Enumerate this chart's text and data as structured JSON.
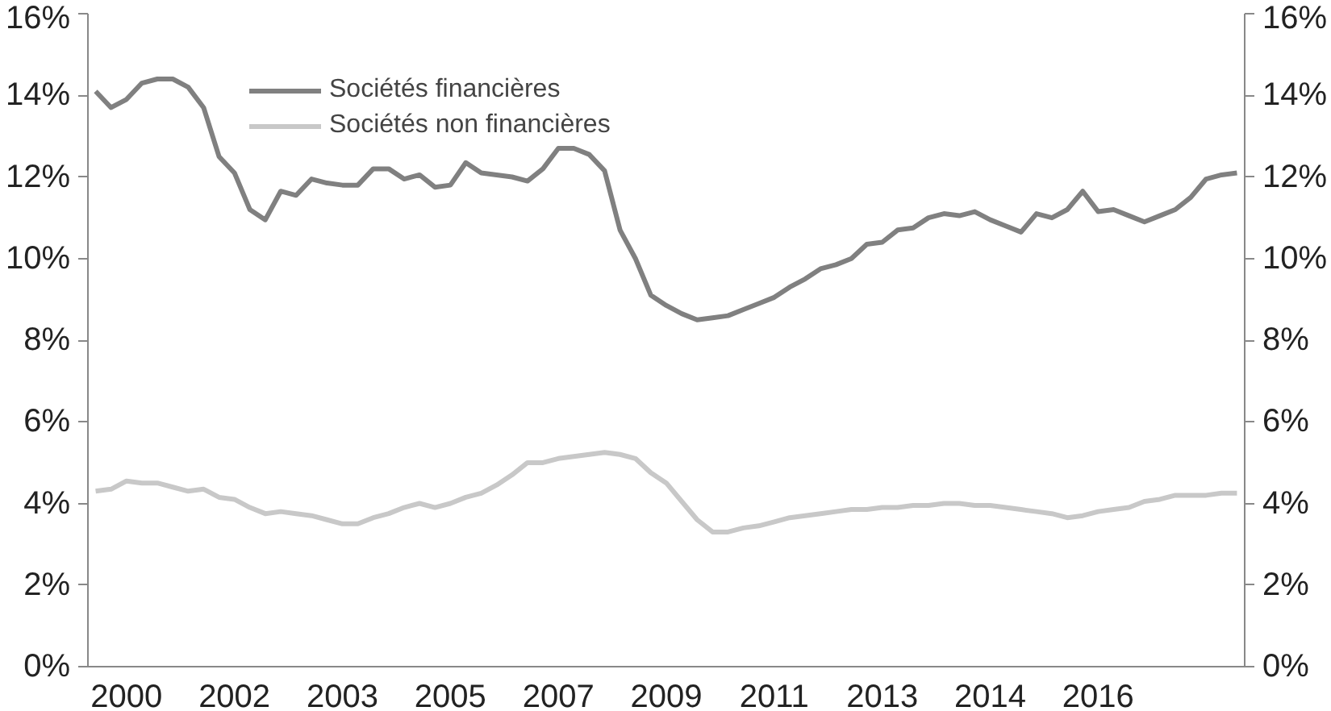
{
  "chart_data": {
    "type": "line",
    "categories": [
      null,
      null,
      "2000",
      null,
      null,
      null,
      null,
      null,
      null,
      "2002",
      null,
      null,
      null,
      null,
      null,
      null,
      "2003",
      null,
      null,
      null,
      null,
      null,
      null,
      "2005",
      null,
      null,
      null,
      null,
      null,
      null,
      "2007",
      null,
      null,
      null,
      null,
      null,
      null,
      "2009",
      null,
      null,
      null,
      null,
      null,
      null,
      "2011",
      null,
      null,
      null,
      null,
      null,
      null,
      "2013",
      null,
      null,
      null,
      null,
      null,
      null,
      "2014",
      null,
      null,
      null,
      null,
      null,
      null,
      "2016",
      null,
      null,
      null,
      null,
      null,
      null,
      null,
      null,
      null
    ],
    "series": [
      {
        "name": "Sociétés financières",
        "color": "#808080",
        "values": [
          14.1,
          13.7,
          13.9,
          14.3,
          14.4,
          14.4,
          14.2,
          13.7,
          12.5,
          12.1,
          11.2,
          10.95,
          11.65,
          11.55,
          11.95,
          11.85,
          11.8,
          11.8,
          12.2,
          12.2,
          11.95,
          12.05,
          11.75,
          11.8,
          12.35,
          12.1,
          12.05,
          12.0,
          11.9,
          12.2,
          12.7,
          12.7,
          12.55,
          12.15,
          10.7,
          10.0,
          9.1,
          8.85,
          8.65,
          8.5,
          8.55,
          8.6,
          8.75,
          8.9,
          9.05,
          9.3,
          9.5,
          9.75,
          9.85,
          10.0,
          10.35,
          10.4,
          10.7,
          10.75,
          11.0,
          11.1,
          11.05,
          11.15,
          10.95,
          10.8,
          10.65,
          11.1,
          11.0,
          11.2,
          11.65,
          11.15,
          11.2,
          11.05,
          10.9,
          11.05,
          11.2,
          11.5,
          11.95,
          12.05,
          12.1
        ]
      },
      {
        "name": "Sociétés non financières",
        "color": "#c8c8c8",
        "values": [
          4.3,
          4.35,
          4.55,
          4.5,
          4.5,
          4.4,
          4.3,
          4.35,
          4.15,
          4.1,
          3.9,
          3.75,
          3.8,
          3.75,
          3.7,
          3.6,
          3.5,
          3.5,
          3.65,
          3.75,
          3.9,
          4.0,
          3.9,
          4.0,
          4.15,
          4.25,
          4.45,
          4.7,
          5.0,
          5.0,
          5.1,
          5.15,
          5.2,
          5.25,
          5.2,
          5.1,
          4.75,
          4.5,
          4.05,
          3.6,
          3.3,
          3.3,
          3.4,
          3.45,
          3.55,
          3.65,
          3.7,
          3.75,
          3.8,
          3.85,
          3.85,
          3.9,
          3.9,
          3.95,
          3.95,
          4.0,
          4.0,
          3.95,
          3.95,
          3.9,
          3.85,
          3.8,
          3.75,
          3.65,
          3.7,
          3.8,
          3.85,
          3.9,
          4.05,
          4.1,
          4.2,
          4.2,
          4.2,
          4.25,
          4.25
        ]
      }
    ],
    "ylim": [
      0,
      16
    ],
    "yticks": [
      {
        "value": 0,
        "label": "0%"
      },
      {
        "value": 2,
        "label": "2%"
      },
      {
        "value": 4,
        "label": "4%"
      },
      {
        "value": 6,
        "label": "6%"
      },
      {
        "value": 8,
        "label": "8%"
      },
      {
        "value": 10,
        "label": "10%"
      },
      {
        "value": 12,
        "label": "12%"
      },
      {
        "value": 14,
        "label": "14%"
      },
      {
        "value": 16,
        "label": "16%"
      }
    ],
    "y2lim": [
      0,
      16
    ],
    "y2ticks": [
      {
        "value": 0,
        "label": "0%"
      },
      {
        "value": 2,
        "label": "2%"
      },
      {
        "value": 4,
        "label": "4%"
      },
      {
        "value": 6,
        "label": "6%"
      },
      {
        "value": 8,
        "label": "8%"
      },
      {
        "value": 10,
        "label": "10%"
      },
      {
        "value": 12,
        "label": "12%"
      },
      {
        "value": 14,
        "label": "14%"
      },
      {
        "value": 16,
        "label": "16%"
      }
    ],
    "grid": false,
    "legend": "top",
    "line_style": "solid",
    "marker": "none"
  }
}
